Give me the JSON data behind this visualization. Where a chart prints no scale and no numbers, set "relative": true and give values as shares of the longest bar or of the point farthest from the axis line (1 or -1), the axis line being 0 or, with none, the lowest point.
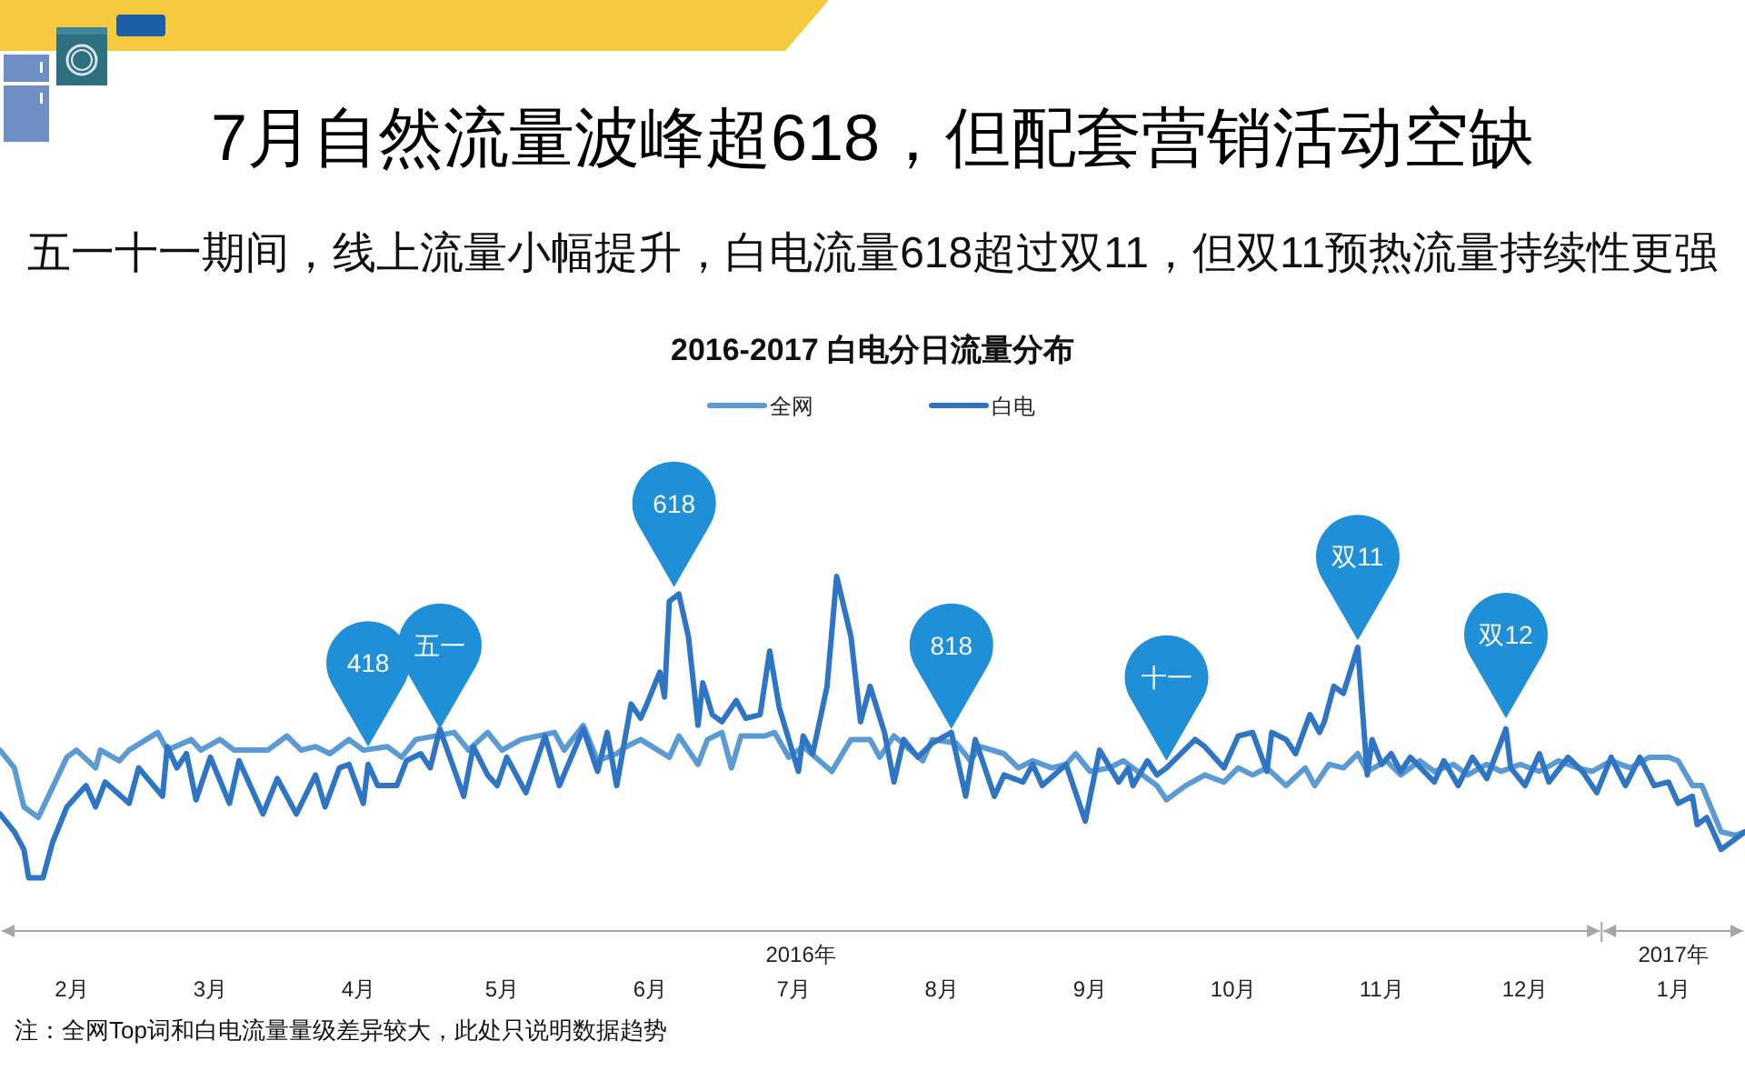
{
  "chart_data": {
    "type": "line",
    "title": "7月自然流量波峰超618，但配套营销活动空缺",
    "subtitle": "五一十一期间，线上流量小幅提升，白电流量618超过双11，但双11预热流量持续性更强",
    "relative": true,
    "legend": "top",
    "xlim": [
      "2016-02-01",
      "2017-01-31"
    ],
    "xticks": [
      {
        "value": "2016-02-16",
        "label": "2月"
      },
      {
        "value": "2016-03-16",
        "label": "3月"
      },
      {
        "value": "2016-04-16",
        "label": "4月"
      },
      {
        "value": "2016-05-16",
        "label": "5月"
      },
      {
        "value": "2016-06-16",
        "label": "6月"
      },
      {
        "value": "2016-07-16",
        "label": "7月"
      },
      {
        "value": "2016-08-16",
        "label": "8月"
      },
      {
        "value": "2016-09-16",
        "label": "9月"
      },
      {
        "value": "2016-10-16",
        "label": "10月"
      },
      {
        "value": "2016-11-16",
        "label": "11月"
      },
      {
        "value": "2016-12-16",
        "label": "12月"
      },
      {
        "value": "2017-01-01",
        "label": null
      },
      {
        "value": "2017-01-16",
        "label": "1月"
      }
    ],
    "series": [
      {
        "name": "全网",
        "color": "#5b9bd5",
        "x": [
          "2016-02-01",
          "2016-02-04",
          "2016-02-06",
          "2016-02-09",
          "2016-02-15",
          "2016-02-17",
          "2016-02-21",
          "2016-02-22",
          "2016-02-26",
          "2016-02-28",
          "2016-03-05",
          "2016-03-07",
          "2016-03-12",
          "2016-03-14",
          "2016-03-18",
          "2016-03-21",
          "2016-03-28",
          "2016-04-01",
          "2016-04-04",
          "2016-04-07",
          "2016-04-10",
          "2016-04-14",
          "2016-04-17",
          "2016-04-22",
          "2016-04-25",
          "2016-04-28",
          "2016-05-06",
          "2016-05-09",
          "2016-05-13",
          "2016-05-16",
          "2016-05-20",
          "2016-05-27",
          "2016-05-29",
          "2016-06-02",
          "2016-06-05",
          "2016-06-09",
          "2016-06-11",
          "2016-06-14",
          "2016-06-20",
          "2016-06-22",
          "2016-06-26",
          "2016-06-28",
          "2016-07-01",
          "2016-07-03",
          "2016-07-05",
          "2016-07-10",
          "2016-07-12",
          "2016-07-15",
          "2016-07-18",
          "2016-07-24",
          "2016-07-28",
          "2016-08-01",
          "2016-08-03",
          "2016-08-06",
          "2016-08-12",
          "2016-08-14",
          "2016-08-19",
          "2016-08-22",
          "2016-08-24",
          "2016-08-29",
          "2016-09-01",
          "2016-09-04",
          "2016-09-08",
          "2016-09-11",
          "2016-09-13",
          "2016-09-16",
          "2016-09-20",
          "2016-09-23",
          "2016-09-25",
          "2016-09-30",
          "2016-10-02",
          "2016-10-06",
          "2016-10-10",
          "2016-10-14",
          "2016-10-17",
          "2016-10-20",
          "2016-10-23",
          "2016-10-27",
          "2016-10-31",
          "2016-11-02",
          "2016-11-05",
          "2016-11-08",
          "2016-11-11",
          "2016-11-13",
          "2016-11-17",
          "2016-11-20",
          "2016-11-24",
          "2016-11-27",
          "2016-12-01",
          "2016-12-04",
          "2016-12-08",
          "2016-12-11",
          "2016-12-15",
          "2016-12-19",
          "2016-12-23",
          "2016-12-27",
          "2016-12-30",
          "2017-01-03",
          "2017-01-07",
          "2017-01-11",
          "2017-01-15",
          "2017-01-17",
          "2017-01-20",
          "2017-01-22",
          "2017-01-26",
          "2017-01-29",
          "2017-01-31"
        ],
        "values": [
          0.51,
          0.46,
          0.35,
          0.32,
          0.49,
          0.51,
          0.46,
          0.51,
          0.48,
          0.51,
          0.56,
          0.51,
          0.54,
          0.51,
          0.54,
          0.51,
          0.51,
          0.55,
          0.51,
          0.52,
          0.5,
          0.54,
          0.51,
          0.52,
          0.49,
          0.54,
          0.56,
          0.51,
          0.56,
          0.51,
          0.54,
          0.56,
          0.51,
          0.58,
          0.48,
          0.5,
          0.52,
          0.54,
          0.49,
          0.55,
          0.47,
          0.54,
          0.56,
          0.46,
          0.55,
          0.55,
          0.56,
          0.49,
          0.52,
          0.45,
          0.54,
          0.54,
          0.49,
          0.55,
          0.48,
          0.54,
          0.53,
          0.48,
          0.52,
          0.5,
          0.46,
          0.48,
          0.46,
          0.47,
          0.5,
          0.45,
          0.46,
          0.48,
          0.46,
          0.41,
          0.37,
          0.41,
          0.44,
          0.42,
          0.46,
          0.44,
          0.46,
          0.41,
          0.46,
          0.41,
          0.47,
          0.46,
          0.5,
          0.45,
          0.48,
          0.44,
          0.48,
          0.45,
          0.47,
          0.44,
          0.47,
          0.45,
          0.47,
          0.45,
          0.48,
          0.46,
          0.45,
          0.48,
          0.46,
          0.49,
          0.49,
          0.48,
          0.41,
          0.41,
          0.28,
          0.27,
          0.28
        ]
      },
      {
        "name": "白电",
        "color": "#2e75c6",
        "x": [
          "2016-02-01",
          "2016-02-04",
          "2016-02-06",
          "2016-02-07",
          "2016-02-10",
          "2016-02-12",
          "2016-02-15",
          "2016-02-19",
          "2016-02-21",
          "2016-02-23",
          "2016-02-28",
          "2016-03-01",
          "2016-03-06",
          "2016-03-07",
          "2016-03-09",
          "2016-03-11",
          "2016-03-13",
          "2016-03-16",
          "2016-03-20",
          "2016-03-22",
          "2016-03-27",
          "2016-03-30",
          "2016-04-03",
          "2016-04-07",
          "2016-04-09",
          "2016-04-12",
          "2016-04-14",
          "2016-04-17",
          "2016-04-18",
          "2016-04-20",
          "2016-04-24",
          "2016-04-26",
          "2016-04-29",
          "2016-05-01",
          "2016-05-03",
          "2016-05-08",
          "2016-05-10",
          "2016-05-13",
          "2016-05-15",
          "2016-05-17",
          "2016-05-21",
          "2016-05-25",
          "2016-05-28",
          "2016-06-02",
          "2016-06-05",
          "2016-06-07",
          "2016-06-09",
          "2016-06-12",
          "2016-06-14",
          "2016-06-15",
          "2016-06-18",
          "2016-06-19",
          "2016-06-20",
          "2016-06-22",
          "2016-06-24",
          "2016-06-26",
          "2016-06-27",
          "2016-06-29",
          "2016-07-01",
          "2016-07-04",
          "2016-07-06",
          "2016-07-09",
          "2016-07-11",
          "2016-07-13",
          "2016-07-17",
          "2016-07-18",
          "2016-07-20",
          "2016-07-23",
          "2016-07-25",
          "2016-07-28",
          "2016-07-30",
          "2016-08-01",
          "2016-08-04",
          "2016-08-06",
          "2016-08-08",
          "2016-08-11",
          "2016-08-14",
          "2016-08-18",
          "2016-08-21",
          "2016-08-23",
          "2016-08-27",
          "2016-08-29",
          "2016-09-02",
          "2016-09-04",
          "2016-09-06",
          "2016-09-11",
          "2016-09-15",
          "2016-09-18",
          "2016-09-22",
          "2016-09-24",
          "2016-09-25",
          "2016-09-28",
          "2016-09-30",
          "2016-10-02",
          "2016-10-08",
          "2016-10-10",
          "2016-10-14",
          "2016-10-17",
          "2016-10-20",
          "2016-10-23",
          "2016-10-24",
          "2016-10-27",
          "2016-10-29",
          "2016-11-01",
          "2016-11-03",
          "2016-11-04",
          "2016-11-06",
          "2016-11-08",
          "2016-11-11",
          "2016-11-13",
          "2016-11-14",
          "2016-11-16",
          "2016-11-18",
          "2016-11-20",
          "2016-11-22",
          "2016-11-27",
          "2016-11-29",
          "2016-12-02",
          "2016-12-05",
          "2016-12-08",
          "2016-12-12",
          "2016-12-13",
          "2016-12-16",
          "2016-12-19",
          "2016-12-21",
          "2016-12-25",
          "2016-12-28",
          "2016-12-31",
          "2017-01-03",
          "2017-01-06",
          "2017-01-09",
          "2017-01-12",
          "2017-01-15",
          "2017-01-17",
          "2017-01-20",
          "2017-01-21",
          "2017-01-23",
          "2017-01-26",
          "2017-01-31"
        ],
        "values": [
          0.33,
          0.28,
          0.23,
          0.15,
          0.15,
          0.25,
          0.35,
          0.41,
          0.35,
          0.42,
          0.36,
          0.46,
          0.38,
          0.52,
          0.46,
          0.5,
          0.37,
          0.49,
          0.36,
          0.48,
          0.33,
          0.43,
          0.33,
          0.44,
          0.35,
          0.46,
          0.47,
          0.36,
          0.47,
          0.41,
          0.41,
          0.48,
          0.5,
          0.46,
          0.57,
          0.38,
          0.52,
          0.44,
          0.41,
          0.49,
          0.39,
          0.55,
          0.41,
          0.57,
          0.45,
          0.56,
          0.41,
          0.64,
          0.6,
          0.63,
          0.73,
          0.66,
          0.93,
          0.95,
          0.83,
          0.58,
          0.7,
          0.61,
          0.59,
          0.65,
          0.6,
          0.61,
          0.79,
          0.63,
          0.45,
          0.55,
          0.5,
          0.69,
          1,
          0.83,
          0.59,
          0.69,
          0.56,
          0.42,
          0.54,
          0.49,
          0.53,
          0.56,
          0.38,
          0.54,
          0.38,
          0.44,
          0.42,
          0.47,
          0.41,
          0.47,
          0.31,
          0.51,
          0.42,
          0.46,
          0.41,
          0.48,
          0.44,
          0.46,
          0.54,
          0.52,
          0.46,
          0.55,
          0.56,
          0.45,
          0.56,
          0.54,
          0.5,
          0.61,
          0.56,
          0.59,
          0.69,
          0.67,
          0.8,
          0.44,
          0.54,
          0.47,
          0.5,
          0.45,
          0.49,
          0.42,
          0.48,
          0.41,
          0.49,
          0.43,
          0.57,
          0.46,
          0.41,
          0.5,
          0.42,
          0.49,
          0.45,
          0.39,
          0.49,
          0.41,
          0.49,
          0.41,
          0.42,
          0.36,
          0.38,
          0.3,
          0.32,
          0.23,
          0.28
        ]
      }
    ],
    "annotations": [
      "2016-2017 白电分日流量分布",
      "2016年",
      "2017年",
      {
        "text": "418",
        "x": "2016-04-18",
        "y": 0.52
      },
      {
        "text": "五一",
        "x": "2016-05-03",
        "y": 0.57
      },
      {
        "text": "618",
        "x": "2016-06-21",
        "y": 0.97
      },
      {
        "text": "818",
        "x": "2016-08-18",
        "y": 0.57
      },
      {
        "text": "十一",
        "x": "2016-10-02",
        "y": 0.48
      },
      {
        "text": "双11",
        "x": "2016-11-11",
        "y": 0.82
      },
      {
        "text": "双12",
        "x": "2016-12-12",
        "y": 0.6
      },
      "注：全网Top词和白电流量量级差异较大，此处只说明数据趋势"
    ]
  }
}
